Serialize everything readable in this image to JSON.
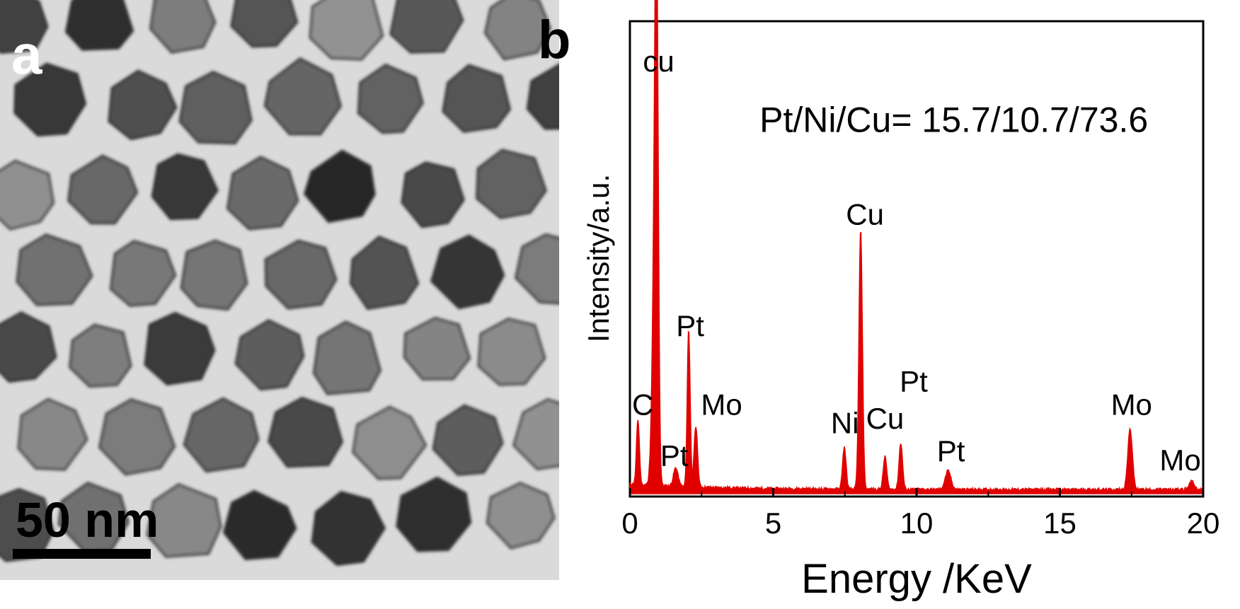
{
  "panel_a": {
    "letter": "a",
    "scale_label": "50 nm"
  },
  "chart_data": {
    "type": "line",
    "panel_letter": "b",
    "title": "",
    "annotation": "Pt/Ni/Cu= 15.7/10.7/73.6",
    "xlabel": "Energy /KeV",
    "ylabel": "Intensity/a.u.",
    "xlim": [
      0,
      20
    ],
    "ylim": [
      0,
      100
    ],
    "xticks": [
      0,
      5,
      10,
      15,
      20
    ],
    "y_tick_labels": false,
    "grid": false,
    "color": "#e00000",
    "peaks": [
      {
        "x": 0.28,
        "y": 14,
        "w": 0.05
      },
      {
        "x": 0.93,
        "y": 100,
        "w": 0.06
      },
      {
        "x": 0.85,
        "y": 40,
        "w": 0.08
      },
      {
        "x": 1.6,
        "y": 4,
        "w": 0.08
      },
      {
        "x": 2.05,
        "y": 34,
        "w": 0.05
      },
      {
        "x": 2.3,
        "y": 13,
        "w": 0.06
      },
      {
        "x": 7.48,
        "y": 9,
        "w": 0.06
      },
      {
        "x": 8.05,
        "y": 56,
        "w": 0.06
      },
      {
        "x": 8.9,
        "y": 7,
        "w": 0.06
      },
      {
        "x": 9.45,
        "y": 10,
        "w": 0.06
      },
      {
        "x": 11.1,
        "y": 4,
        "w": 0.1
      },
      {
        "x": 17.45,
        "y": 13,
        "w": 0.08
      },
      {
        "x": 19.6,
        "y": 2,
        "w": 0.08
      }
    ],
    "peak_labels": [
      {
        "text": "cu",
        "x": 1.0,
        "y": 91
      },
      {
        "text": "Pt/Ni/Cu= 15.7/10.7/73.6",
        "x": 11.3,
        "y": 78
      },
      {
        "text": "Cu",
        "x": 8.2,
        "y": 58
      },
      {
        "text": "Pt",
        "x": 2.1,
        "y": 34
      },
      {
        "text": "Pt",
        "x": 9.9,
        "y": 22
      },
      {
        "text": "C",
        "x": 0.45,
        "y": 17
      },
      {
        "text": "Mo",
        "x": 3.2,
        "y": 17
      },
      {
        "text": "Ni",
        "x": 7.5,
        "y": 13
      },
      {
        "text": "Cu",
        "x": 8.9,
        "y": 14
      },
      {
        "text": "Mo",
        "x": 17.5,
        "y": 17
      },
      {
        "text": "Pt",
        "x": 1.55,
        "y": 6
      },
      {
        "text": "Pt",
        "x": 11.2,
        "y": 7
      },
      {
        "text": "Mo",
        "x": 19.2,
        "y": 5
      }
    ]
  }
}
